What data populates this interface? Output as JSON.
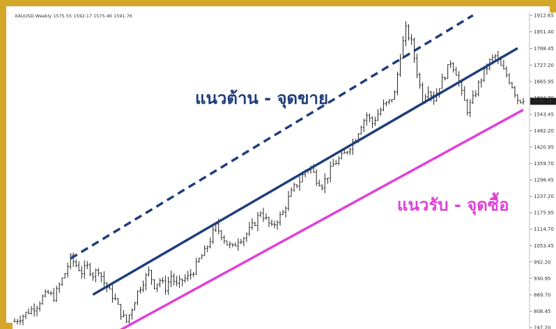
{
  "header": {
    "text": "XAUUSD,Weekly 1575.55 1592.17 1575.46 1591.76"
  },
  "annotations": {
    "resistance_label": "แนวต้าน - จุดขาย",
    "support_label": "แนวรับ - จุดซื้อ",
    "resistance_color": "#1f3d7a",
    "support_color": "#e040d8"
  },
  "price_tag": "1591.76",
  "chart_data": {
    "type": "candlestick",
    "title": "",
    "symbol": "XAUUSD",
    "timeframe": "Weekly",
    "ohlc_header": {
      "open": 1575.55,
      "high": 1592.17,
      "low": 1575.46,
      "close": 1591.76
    },
    "y_axis_ticks": [
      "1912.65",
      "1851.40",
      "1788.45",
      "1727.20",
      "1665.95",
      "1604.70",
      "1543.45",
      "1482.20",
      "1420.95",
      "1359.70",
      "1298.45",
      "1237.20",
      "1175.95",
      "1114.70",
      "1053.45",
      "992.20",
      "930.95",
      "869.70",
      "808.45",
      "747.20"
    ],
    "ylim": [
      747.2,
      1912.65
    ],
    "close_path": [
      [
        0,
        770
      ],
      [
        4,
        800
      ],
      [
        8,
        830
      ],
      [
        10,
        860
      ],
      [
        12,
        875
      ],
      [
        14,
        860
      ],
      [
        16,
        905
      ],
      [
        18,
        950
      ],
      [
        20,
        1005
      ],
      [
        22,
        980
      ],
      [
        24,
        955
      ],
      [
        26,
        975
      ],
      [
        28,
        945
      ],
      [
        30,
        965
      ],
      [
        32,
        915
      ],
      [
        34,
        880
      ],
      [
        36,
        850
      ],
      [
        38,
        800
      ],
      [
        40,
        770
      ],
      [
        42,
        820
      ],
      [
        44,
        880
      ],
      [
        46,
        920
      ],
      [
        48,
        955
      ],
      [
        50,
        905
      ],
      [
        52,
        925
      ],
      [
        54,
        895
      ],
      [
        56,
        940
      ],
      [
        58,
        905
      ],
      [
        60,
        925
      ],
      [
        62,
        935
      ],
      [
        64,
        960
      ],
      [
        66,
        1000
      ],
      [
        68,
        1030
      ],
      [
        70,
        1075
      ],
      [
        72,
        1125
      ],
      [
        74,
        1095
      ],
      [
        76,
        1060
      ],
      [
        78,
        1045
      ],
      [
        80,
        1075
      ],
      [
        82,
        1085
      ],
      [
        84,
        1110
      ],
      [
        86,
        1140
      ],
      [
        88,
        1180
      ],
      [
        90,
        1150
      ],
      [
        92,
        1120
      ],
      [
        94,
        1150
      ],
      [
        96,
        1175
      ],
      [
        98,
        1230
      ],
      [
        100,
        1270
      ],
      [
        102,
        1295
      ],
      [
        104,
        1335
      ],
      [
        106,
        1345
      ],
      [
        108,
        1300
      ],
      [
        110,
        1280
      ],
      [
        112,
        1315
      ],
      [
        114,
        1355
      ],
      [
        116,
        1375
      ],
      [
        118,
        1395
      ],
      [
        120,
        1425
      ],
      [
        122,
        1455
      ],
      [
        124,
        1505
      ],
      [
        126,
        1540
      ],
      [
        128,
        1510
      ],
      [
        130,
        1545
      ],
      [
        132,
        1575
      ],
      [
        134,
        1590
      ],
      [
        136,
        1620
      ],
      [
        138,
        1765
      ],
      [
        140,
        1860
      ],
      [
        142,
        1810
      ],
      [
        144,
        1700
      ],
      [
        146,
        1600
      ],
      [
        148,
        1640
      ],
      [
        150,
        1600
      ],
      [
        152,
        1650
      ],
      [
        154,
        1690
      ],
      [
        156,
        1740
      ],
      [
        158,
        1700
      ],
      [
        160,
        1620
      ],
      [
        162,
        1560
      ],
      [
        164,
        1600
      ],
      [
        166,
        1655
      ],
      [
        168,
        1700
      ],
      [
        170,
        1740
      ],
      [
        172,
        1760
      ],
      [
        174,
        1720
      ],
      [
        176,
        1690
      ],
      [
        178,
        1650
      ],
      [
        180,
        1600
      ],
      [
        182,
        1591.76
      ]
    ],
    "trendlines": {
      "resistance_solid": [
        [
          28,
          870
        ],
        [
          180,
          1790
        ]
      ],
      "resistance_dashed": [
        [
          20,
          1005
        ],
        [
          164,
          1912.65
        ]
      ],
      "support": [
        [
          32,
          705
        ],
        [
          182,
          1560
        ]
      ]
    }
  }
}
